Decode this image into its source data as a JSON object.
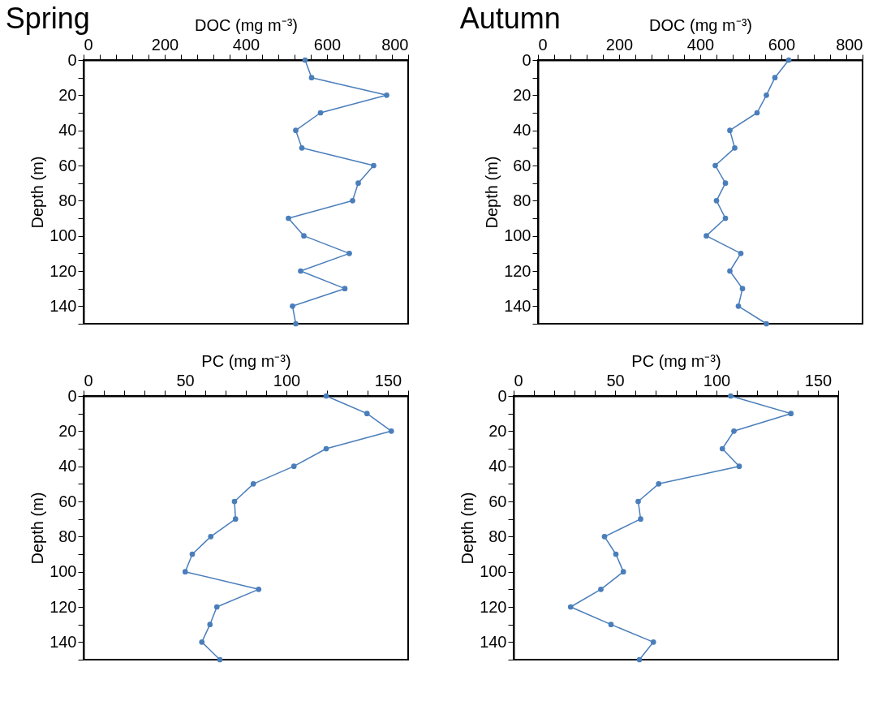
{
  "chart_data": [
    {
      "type": "line",
      "title": "Spring",
      "xlabel": "DOC (mg m⁻³)",
      "ylabel": "Depth (m)",
      "xlim": [
        0,
        800
      ],
      "ylim": [
        150,
        0
      ],
      "marker": "circle",
      "line_style": "solid",
      "xticks": [
        0,
        {
          "value": 40,
          "label": null
        },
        {
          "value": 80,
          "label": null
        },
        {
          "value": 120,
          "label": null
        },
        {
          "value": 160,
          "label": null
        },
        200,
        {
          "value": 240,
          "label": null
        },
        {
          "value": 280,
          "label": null
        },
        {
          "value": 320,
          "label": null
        },
        {
          "value": 360,
          "label": null
        },
        400,
        {
          "value": 440,
          "label": null
        },
        {
          "value": 480,
          "label": null
        },
        {
          "value": 520,
          "label": null
        },
        {
          "value": 560,
          "label": null
        },
        600,
        {
          "value": 640,
          "label": null
        },
        {
          "value": 680,
          "label": null
        },
        {
          "value": 720,
          "label": null
        },
        {
          "value": 760,
          "label": null
        },
        800
      ],
      "yticks": [
        0,
        {
          "value": 10,
          "label": null
        },
        20,
        {
          "value": 30,
          "label": null
        },
        40,
        {
          "value": 50,
          "label": null
        },
        60,
        {
          "value": 70,
          "label": null
        },
        80,
        {
          "value": 90,
          "label": null
        },
        100,
        {
          "value": 110,
          "label": null
        },
        120,
        {
          "value": 130,
          "label": null
        },
        140,
        {
          "value": 150,
          "label": null
        }
      ],
      "series": [
        {
          "color": "#4a7ebb",
          "x": [
            546,
            562,
            747,
            584,
            523,
            538,
            715,
            677,
            663,
            505,
            543,
            655,
            535,
            644,
            515,
            523
          ],
          "values": [
            0,
            10,
            20,
            30,
            40,
            50,
            60,
            70,
            80,
            90,
            100,
            110,
            120,
            130,
            140,
            150
          ]
        }
      ]
    },
    {
      "type": "line",
      "title": "Autumn",
      "xlabel": "DOC (mg m⁻³)",
      "ylabel": "Depth (m)",
      "xlim": [
        0,
        800
      ],
      "ylim": [
        150,
        0
      ],
      "marker": "circle",
      "line_style": "solid",
      "xticks": [
        0,
        {
          "value": 40,
          "label": null
        },
        {
          "value": 80,
          "label": null
        },
        {
          "value": 120,
          "label": null
        },
        {
          "value": 160,
          "label": null
        },
        200,
        {
          "value": 240,
          "label": null
        },
        {
          "value": 280,
          "label": null
        },
        {
          "value": 320,
          "label": null
        },
        {
          "value": 360,
          "label": null
        },
        400,
        {
          "value": 440,
          "label": null
        },
        {
          "value": 480,
          "label": null
        },
        {
          "value": 520,
          "label": null
        },
        {
          "value": 560,
          "label": null
        },
        600,
        {
          "value": 640,
          "label": null
        },
        {
          "value": 680,
          "label": null
        },
        {
          "value": 720,
          "label": null
        },
        {
          "value": 760,
          "label": null
        },
        800
      ],
      "yticks": [
        0,
        {
          "value": 10,
          "label": null
        },
        20,
        {
          "value": 30,
          "label": null
        },
        40,
        {
          "value": 50,
          "label": null
        },
        60,
        {
          "value": 70,
          "label": null
        },
        80,
        {
          "value": 90,
          "label": null
        },
        100,
        {
          "value": 110,
          "label": null
        },
        120,
        {
          "value": 130,
          "label": null
        },
        140,
        {
          "value": 150,
          "label": null
        }
      ],
      "series": [
        {
          "color": "#4a7ebb",
          "x": [
            618,
            584,
            563,
            540,
            473,
            485,
            437,
            462,
            440,
            462,
            415,
            500,
            473,
            504,
            494,
            563
          ],
          "values": [
            0,
            10,
            20,
            30,
            40,
            50,
            60,
            70,
            80,
            90,
            100,
            110,
            120,
            130,
            140,
            150
          ]
        }
      ]
    },
    {
      "type": "line",
      "xlabel": "PC (mg m⁻³)",
      "ylabel": "Depth (m)",
      "xlim": [
        0,
        160
      ],
      "ylim": [
        150,
        0
      ],
      "marker": "circle",
      "line_style": "solid",
      "xticks": [
        0,
        {
          "value": 10,
          "label": null
        },
        {
          "value": 20,
          "label": null
        },
        {
          "value": 30,
          "label": null
        },
        {
          "value": 40,
          "label": null
        },
        50,
        {
          "value": 60,
          "label": null
        },
        {
          "value": 70,
          "label": null
        },
        {
          "value": 80,
          "label": null
        },
        {
          "value": 90,
          "label": null
        },
        100,
        {
          "value": 110,
          "label": null
        },
        {
          "value": 120,
          "label": null
        },
        {
          "value": 130,
          "label": null
        },
        {
          "value": 140,
          "label": null
        },
        150,
        {
          "value": 160,
          "label": null
        }
      ],
      "yticks": [
        0,
        {
          "value": 10,
          "label": null
        },
        20,
        {
          "value": 30,
          "label": null
        },
        40,
        {
          "value": 50,
          "label": null
        },
        60,
        {
          "value": 70,
          "label": null
        },
        80,
        {
          "value": 90,
          "label": null
        },
        100,
        {
          "value": 110,
          "label": null
        },
        120,
        {
          "value": 130,
          "label": null
        },
        140,
        {
          "value": 150,
          "label": null
        }
      ],
      "series": [
        {
          "color": "#4a7ebb",
          "x": [
            119.6,
            139.7,
            151.7,
            119.6,
            103.7,
            83.7,
            74.4,
            74.9,
            62.7,
            53.6,
            50.1,
            86.3,
            65.7,
            62.3,
            58.3,
            67.2
          ],
          "values": [
            0,
            10,
            20,
            30,
            40,
            50,
            60,
            70,
            80,
            90,
            100,
            110,
            120,
            130,
            140,
            150
          ]
        }
      ]
    },
    {
      "type": "line",
      "xlabel": "PC (mg m⁻³)",
      "ylabel": "Depth (m)",
      "xlim": [
        0,
        160
      ],
      "ylim": [
        150,
        0
      ],
      "marker": "circle",
      "line_style": "solid",
      "xticks": [
        0,
        {
          "value": 10,
          "label": null
        },
        {
          "value": 20,
          "label": null
        },
        {
          "value": 30,
          "label": null
        },
        {
          "value": 40,
          "label": null
        },
        50,
        {
          "value": 60,
          "label": null
        },
        {
          "value": 70,
          "label": null
        },
        {
          "value": 80,
          "label": null
        },
        {
          "value": 90,
          "label": null
        },
        100,
        {
          "value": 110,
          "label": null
        },
        {
          "value": 120,
          "label": null
        },
        {
          "value": 130,
          "label": null
        },
        {
          "value": 140,
          "label": null
        },
        150,
        {
          "value": 160,
          "label": null
        }
      ],
      "yticks": [
        0,
        {
          "value": 10,
          "label": null
        },
        20,
        {
          "value": 30,
          "label": null
        },
        40,
        {
          "value": 50,
          "label": null
        },
        60,
        {
          "value": 70,
          "label": null
        },
        80,
        {
          "value": 90,
          "label": null
        },
        100,
        {
          "value": 110,
          "label": null
        },
        120,
        {
          "value": 130,
          "label": null
        },
        140,
        {
          "value": 150,
          "label": null
        }
      ],
      "series": [
        {
          "color": "#4a7ebb",
          "x": [
            107,
            136.7,
            108.6,
            102.9,
            111.2,
            71.5,
            61.4,
            62.6,
            44.8,
            50.4,
            54.1,
            43,
            28.1,
            48,
            68.9,
            62
          ],
          "values": [
            0,
            10,
            20,
            30,
            40,
            50,
            60,
            70,
            80,
            90,
            100,
            110,
            120,
            130,
            140,
            150
          ]
        }
      ]
    }
  ]
}
